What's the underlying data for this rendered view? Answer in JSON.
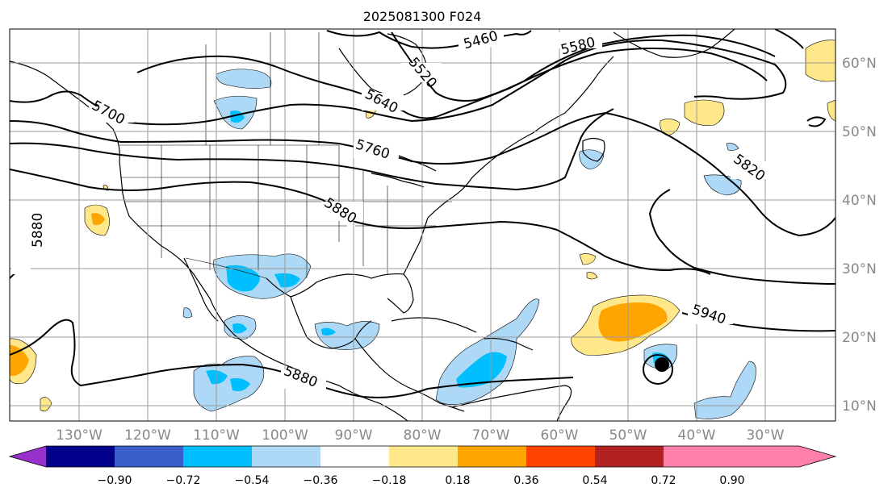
{
  "title": "2025081300 F024",
  "lon_labels": [
    "130°W",
    "120°W",
    "110°W",
    "100°W",
    "90°W",
    "80°W",
    "70°W",
    "60°W",
    "50°W",
    "40°W",
    "30°W"
  ],
  "lat_labels": [
    "60°N",
    "50°N",
    "40°N",
    "30°N",
    "20°N",
    "10°N"
  ],
  "contour_labels": [
    "5460",
    "5580",
    "5520",
    "5640",
    "5700",
    "5760",
    "5820",
    "5880",
    "5880",
    "5880",
    "5940"
  ],
  "colorbar": {
    "ticks": [
      "−0.90",
      "−0.72",
      "−0.54",
      "−0.36",
      "−0.18",
      "0.18",
      "0.36",
      "0.54",
      "0.72",
      "0.90"
    ],
    "colors": [
      "#9932cc",
      "#00008b",
      "#3a5fcd",
      "#00bfff",
      "#add8f6",
      "#ffffff",
      "#ffe88a",
      "#ffa500",
      "#ff4500",
      "#b22222",
      "#ff80aa"
    ]
  },
  "shading_colors": {
    "light_blue": "#add8f6",
    "blue": "#00bfff",
    "yellow": "#ffe88a",
    "orange": "#ffa500"
  }
}
